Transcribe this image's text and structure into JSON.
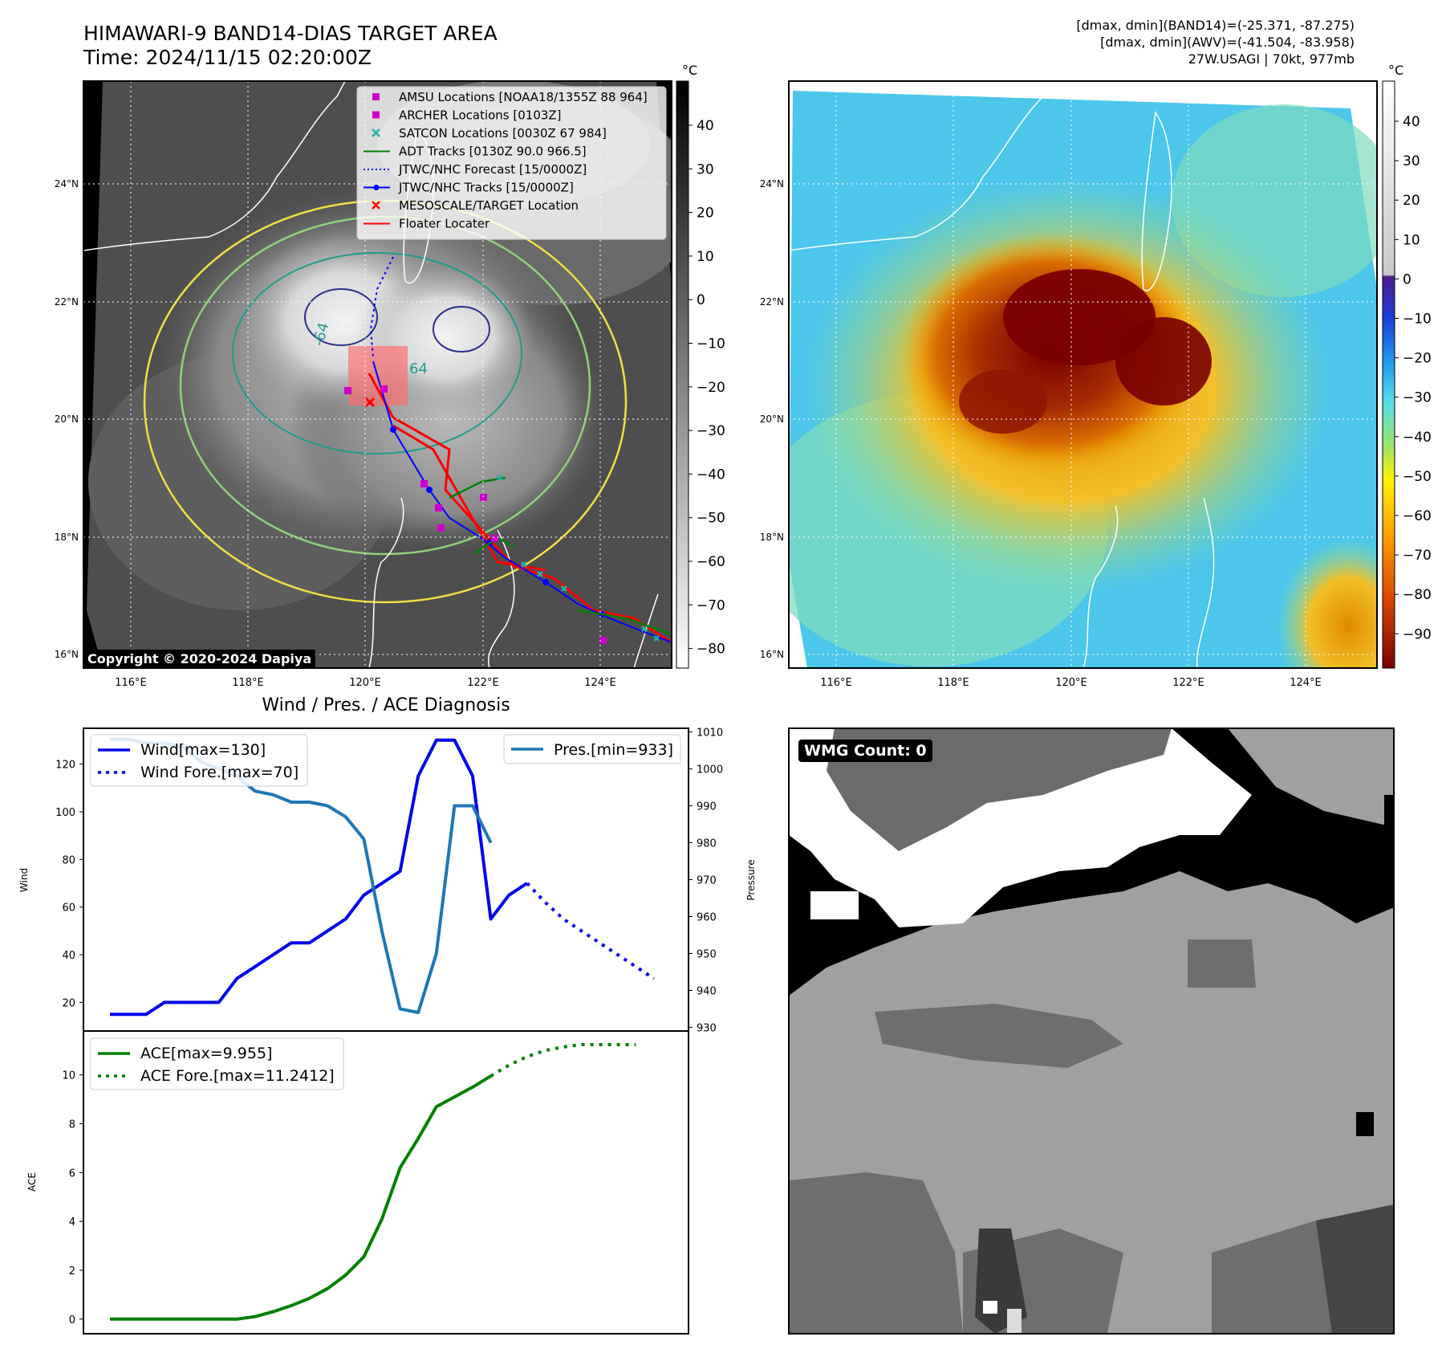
{
  "header": {
    "title_line1": "HIMAWARI-9 BAND14-DIAS TARGET AREA",
    "title_line2": "Time: 2024/11/15 02:20:00Z",
    "info_line1": "[dmax, dmin](BAND14)=(-25.371, -87.275)",
    "info_line2": "[dmax, dmin](AWV)=(-41.504, -83.958)",
    "info_line3": "27W.USAGI | 70kt, 977mb"
  },
  "ir_map": {
    "colorbar_unit": "°C",
    "colorbar_ticks": [
      "40",
      "30",
      "20",
      "10",
      "0",
      "−10",
      "−20",
      "−30",
      "−40",
      "−50",
      "−60",
      "−70",
      "−80"
    ],
    "lat_labels": [
      "24°N",
      "22°N",
      "20°N",
      "18°N",
      "16°N"
    ],
    "lon_labels": [
      "116°E",
      "118°E",
      "120°E",
      "122°E",
      "124°E"
    ],
    "contour_labels": [
      "-64",
      "64"
    ],
    "copyright": "Copyright © 2020-2024 Dapiya",
    "legend": [
      {
        "label": "AMSU Locations [NOAA18/1355Z 88 964]",
        "symbol": "square",
        "color": "#cc00cc"
      },
      {
        "label": "ARCHER Locations [0103Z]",
        "symbol": "square",
        "color": "#cc00cc"
      },
      {
        "label": "SATCON Locations [0030Z 67 984]",
        "symbol": "x",
        "color": "#20b2aa"
      },
      {
        "label": "ADT Tracks [0130Z 90.0 966.5]",
        "symbol": "line",
        "color": "#008000"
      },
      {
        "label": "JTWC/NHC Forecast [15/0000Z]",
        "symbol": "dotted",
        "color": "#0000ff"
      },
      {
        "label": "JTWC/NHC Tracks [15/0000Z]",
        "symbol": "line-dot",
        "color": "#0000ff"
      },
      {
        "label": "MESOSCALE/TARGET Location",
        "symbol": "x",
        "color": "#ff0000"
      },
      {
        "label": "Floater Locater",
        "symbol": "line",
        "color": "#ff0000"
      }
    ]
  },
  "awv_map": {
    "colorbar_unit": "°C",
    "colorbar_ticks": [
      "40",
      "30",
      "20",
      "10",
      "0",
      "−10",
      "−20",
      "−30",
      "−40",
      "−50",
      "−60",
      "−70",
      "−80",
      "−90"
    ],
    "lat_labels": [
      "24°N",
      "22°N",
      "20°N",
      "18°N",
      "16°N"
    ],
    "lon_labels": [
      "116°E",
      "118°E",
      "120°E",
      "122°E",
      "124°E"
    ]
  },
  "diagnosis": {
    "title": "Wind / Pres. / ACE Diagnosis",
    "wind_ylabel": "Wind",
    "pres_ylabel": "Pressure",
    "ace_ylabel": "ACE",
    "wind_legend": [
      "Wind[max=130]",
      "Wind Fore.[max=70]"
    ],
    "pres_legend": "Pres.[min=933]",
    "ace_legend": [
      "ACE[max=9.955]",
      "ACE Fore.[max=11.2412]"
    ],
    "wind_ticks": [
      "20",
      "40",
      "60",
      "80",
      "100",
      "120"
    ],
    "pres_ticks": [
      "930",
      "940",
      "950",
      "960",
      "970",
      "980",
      "990",
      "1000",
      "1010"
    ],
    "ace_ticks": [
      "0",
      "2",
      "4",
      "6",
      "8",
      "10"
    ]
  },
  "wmg": {
    "label": "WMG Count: 0"
  },
  "chart_data": [
    {
      "type": "line",
      "title": "Wind / Pres. / ACE Diagnosis",
      "ylabel": "Wind",
      "ylim": [
        8,
        135
      ],
      "series": [
        {
          "name": "Wind[max=130]",
          "style": "solid",
          "color": "#0000ee",
          "values": [
            15,
            15,
            15,
            20,
            20,
            20,
            20,
            30,
            35,
            40,
            45,
            45,
            50,
            55,
            65,
            70,
            75,
            115,
            130,
            130,
            115,
            55,
            65,
            70
          ]
        },
        {
          "name": "Wind Fore.[max=70]",
          "style": "dotted",
          "color": "#0000ee",
          "offset": 23,
          "values": [
            70,
            62,
            55,
            50,
            45,
            40,
            35,
            30
          ]
        }
      ],
      "secondary": {
        "ylabel": "Pressure",
        "ylim": [
          929,
          1011
        ],
        "series": [
          {
            "name": "Pres.[min=933]",
            "color": "#1f77b4",
            "values": [
              1008,
              1008,
              1007,
              1007,
              1006,
              1002,
              1000,
              998,
              994,
              993,
              991,
              991,
              990,
              987,
              981,
              956,
              935,
              934,
              950,
              990,
              990,
              980
            ]
          }
        ]
      }
    },
    {
      "type": "line",
      "ylabel": "ACE",
      "ylim": [
        -0.6,
        11.8
      ],
      "series": [
        {
          "name": "ACE[max=9.955]",
          "style": "solid",
          "color": "#008000",
          "values": [
            0,
            0,
            0,
            0,
            0,
            0,
            0,
            0,
            0.1,
            0.3,
            0.55,
            0.85,
            1.25,
            1.8,
            2.55,
            4.1,
            6.2,
            7.4,
            8.7,
            9.1,
            9.5,
            9.955
          ]
        },
        {
          "name": "ACE Fore.[max=11.2412]",
          "style": "dotted",
          "color": "#008000",
          "offset": 21,
          "values": [
            9.955,
            10.4,
            10.75,
            11.0,
            11.15,
            11.2412,
            11.2412,
            11.2412,
            11.2412
          ]
        }
      ]
    }
  ]
}
